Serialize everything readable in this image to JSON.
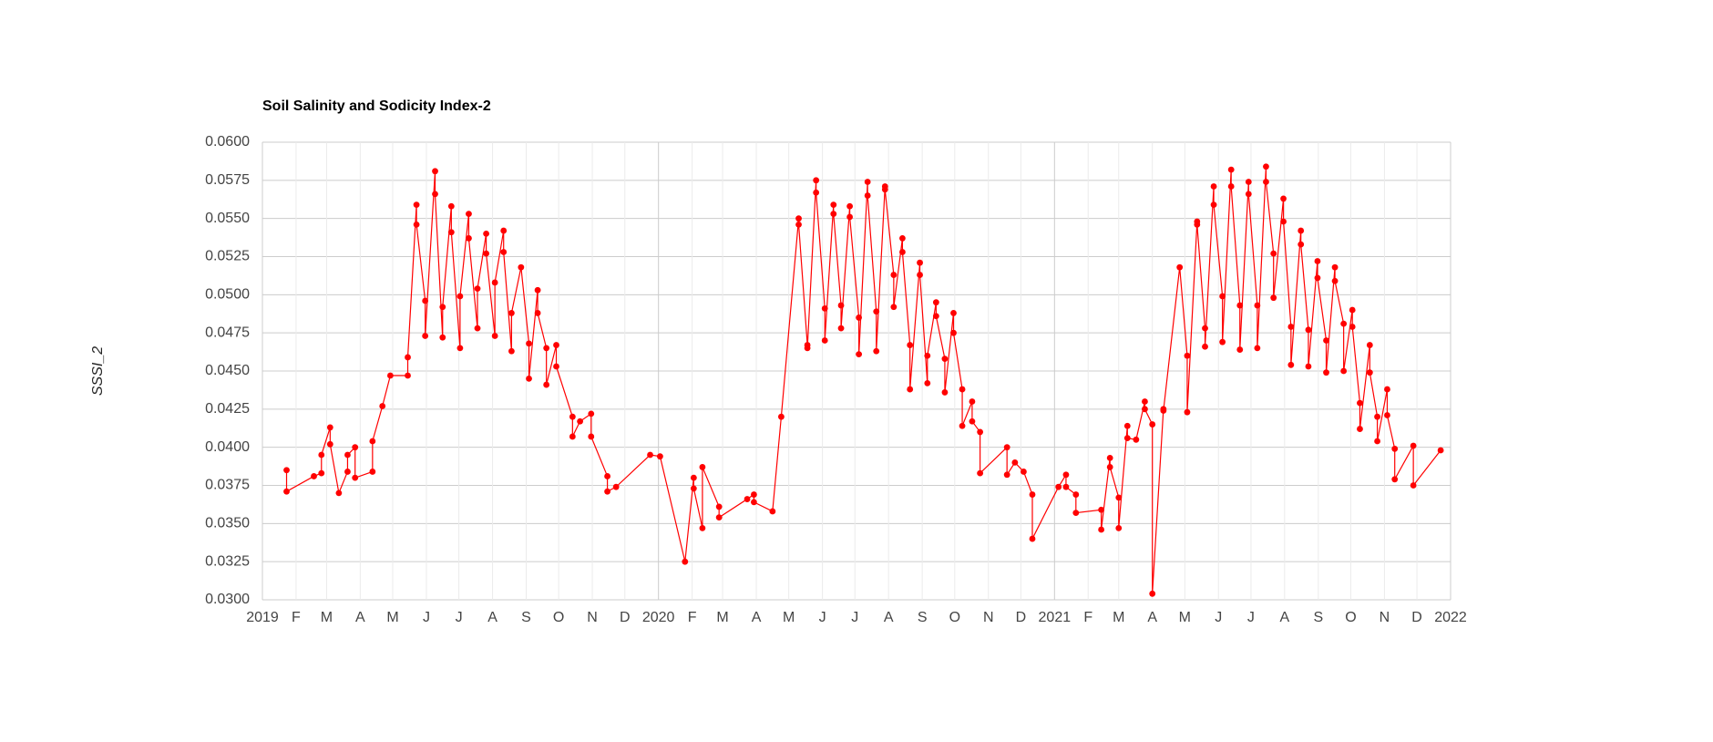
{
  "chart_data": {
    "type": "line",
    "title": "Soil Salinity and Sodicity Index-2",
    "y_label": "SSSI_2",
    "color": "#ff0000",
    "grid": true,
    "x": [
      2019.061,
      2019.061,
      2019.13,
      2019.149,
      2019.149,
      2019.171,
      2019.171,
      2019.193,
      2019.215,
      2019.215,
      2019.234,
      2019.234,
      2019.278,
      2019.278,
      2019.303,
      2019.323,
      2019.367,
      2019.367,
      2019.389,
      2019.389,
      2019.411,
      2019.411,
      2019.436,
      2019.436,
      2019.455,
      2019.455,
      2019.477,
      2019.477,
      2019.499,
      2019.499,
      2019.521,
      2019.521,
      2019.543,
      2019.543,
      2019.565,
      2019.565,
      2019.587,
      2019.587,
      2019.609,
      2019.609,
      2019.629,
      2019.629,
      2019.653,
      2019.673,
      2019.673,
      2019.695,
      2019.695,
      2019.717,
      2019.717,
      2019.742,
      2019.742,
      2019.783,
      2019.783,
      2019.802,
      2019.83,
      2019.83,
      2019.871,
      2019.871,
      2019.893,
      2019.979,
      2020.004,
      2020.067,
      2020.089,
      2020.089,
      2020.111,
      2020.111,
      2020.153,
      2020.153,
      2020.224,
      2020.241,
      2020.241,
      2020.288,
      2020.31,
      2020.354,
      2020.354,
      2020.376,
      2020.376,
      2020.398,
      2020.398,
      2020.42,
      2020.42,
      2020.442,
      2020.442,
      2020.461,
      2020.461,
      2020.483,
      2020.483,
      2020.506,
      2020.506,
      2020.528,
      2020.528,
      2020.55,
      2020.55,
      2020.572,
      2020.572,
      2020.594,
      2020.594,
      2020.616,
      2020.616,
      2020.635,
      2020.635,
      2020.66,
      2020.66,
      2020.679,
      2020.679,
      2020.701,
      2020.701,
      2020.723,
      2020.723,
      2020.745,
      2020.745,
      2020.767,
      2020.767,
      2020.792,
      2020.792,
      2020.812,
      2020.812,
      2020.88,
      2020.88,
      2020.9,
      2020.922,
      2020.944,
      2020.944,
      2021.01,
      2021.029,
      2021.029,
      2021.054,
      2021.054,
      2021.118,
      2021.118,
      2021.14,
      2021.14,
      2021.162,
      2021.162,
      2021.184,
      2021.184,
      2021.206,
      2021.228,
      2021.228,
      2021.247,
      2021.247,
      2021.275,
      2021.275,
      2021.316,
      2021.335,
      2021.335,
      2021.36,
      2021.36,
      2021.38,
      2021.38,
      2021.402,
      2021.402,
      2021.424,
      2021.424,
      2021.446,
      2021.446,
      2021.468,
      2021.468,
      2021.49,
      2021.49,
      2021.512,
      2021.512,
      2021.534,
      2021.534,
      2021.553,
      2021.553,
      2021.578,
      2021.578,
      2021.597,
      2021.597,
      2021.622,
      2021.622,
      2021.641,
      2021.641,
      2021.664,
      2021.664,
      2021.686,
      2021.686,
      2021.708,
      2021.708,
      2021.73,
      2021.73,
      2021.752,
      2021.752,
      2021.771,
      2021.771,
      2021.796,
      2021.796,
      2021.815,
      2021.815,
      2021.84,
      2021.84,
      2021.859,
      2021.859,
      2021.906,
      2021.906,
      2021.975
    ],
    "values": [
      0.0385,
      0.0371,
      0.0381,
      0.0383,
      0.0395,
      0.0413,
      0.0402,
      0.037,
      0.0384,
      0.0395,
      0.04,
      0.038,
      0.0384,
      0.0404,
      0.0427,
      0.0447,
      0.0447,
      0.0459,
      0.0559,
      0.0546,
      0.0496,
      0.0473,
      0.0581,
      0.0566,
      0.0472,
      0.0492,
      0.0558,
      0.0541,
      0.0465,
      0.0499,
      0.0553,
      0.0537,
      0.0478,
      0.0504,
      0.054,
      0.0527,
      0.0473,
      0.0508,
      0.0542,
      0.0528,
      0.0463,
      0.0488,
      0.0518,
      0.0468,
      0.0445,
      0.0503,
      0.0488,
      0.0465,
      0.0441,
      0.0467,
      0.0453,
      0.042,
      0.0407,
      0.0417,
      0.0422,
      0.0407,
      0.0381,
      0.0371,
      0.0374,
      0.0395,
      0.0394,
      0.0325,
      0.038,
      0.0373,
      0.0347,
      0.0387,
      0.0361,
      0.0354,
      0.0366,
      0.0369,
      0.0364,
      0.0358,
      0.042,
      0.055,
      0.0546,
      0.0467,
      0.0465,
      0.0575,
      0.0567,
      0.0491,
      0.047,
      0.0559,
      0.0553,
      0.0493,
      0.0478,
      0.0558,
      0.0551,
      0.0485,
      0.0461,
      0.0574,
      0.0565,
      0.0489,
      0.0463,
      0.0571,
      0.0569,
      0.0513,
      0.0492,
      0.0537,
      0.0528,
      0.0467,
      0.0438,
      0.0521,
      0.0513,
      0.0442,
      0.046,
      0.0495,
      0.0486,
      0.0458,
      0.0436,
      0.0488,
      0.0475,
      0.0438,
      0.0414,
      0.043,
      0.0417,
      0.041,
      0.0383,
      0.04,
      0.0382,
      0.039,
      0.0384,
      0.0369,
      0.034,
      0.0374,
      0.0382,
      0.0374,
      0.0369,
      0.0357,
      0.0359,
      0.0346,
      0.0393,
      0.0387,
      0.0367,
      0.0347,
      0.0414,
      0.0406,
      0.0405,
      0.043,
      0.0425,
      0.0415,
      0.0304,
      0.0425,
      0.0424,
      0.0518,
      0.046,
      0.0423,
      0.0548,
      0.0546,
      0.0478,
      0.0466,
      0.0571,
      0.0559,
      0.0499,
      0.0469,
      0.0582,
      0.0571,
      0.0493,
      0.0464,
      0.0574,
      0.0566,
      0.0493,
      0.0465,
      0.0584,
      0.0574,
      0.0527,
      0.0498,
      0.0563,
      0.0548,
      0.0479,
      0.0454,
      0.0542,
      0.0533,
      0.0477,
      0.0453,
      0.0522,
      0.0511,
      0.047,
      0.0449,
      0.0518,
      0.0509,
      0.0481,
      0.045,
      0.049,
      0.0479,
      0.0429,
      0.0412,
      0.0467,
      0.0449,
      0.042,
      0.0404,
      0.0438,
      0.0421,
      0.0399,
      0.0379,
      0.0401,
      0.0375,
      0.0398
    ],
    "xlim": [
      2019,
      2022
    ],
    "xticks": [
      2019,
      {
        "value": 2019.085,
        "label": "F"
      },
      {
        "value": 2019.162,
        "label": "M"
      },
      {
        "value": 2019.247,
        "label": "A"
      },
      {
        "value": 2019.329,
        "label": "M"
      },
      {
        "value": 2019.414,
        "label": "J"
      },
      {
        "value": 2019.496,
        "label": "J"
      },
      {
        "value": 2019.581,
        "label": "A"
      },
      {
        "value": 2019.666,
        "label": "S"
      },
      {
        "value": 2019.748,
        "label": "O"
      },
      {
        "value": 2019.833,
        "label": "N"
      },
      {
        "value": 2019.915,
        "label": "D"
      },
      2020,
      {
        "value": 2020.085,
        "label": "F"
      },
      {
        "value": 2020.162,
        "label": "M"
      },
      {
        "value": 2020.247,
        "label": "A"
      },
      {
        "value": 2020.329,
        "label": "M"
      },
      {
        "value": 2020.414,
        "label": "J"
      },
      {
        "value": 2020.496,
        "label": "J"
      },
      {
        "value": 2020.581,
        "label": "A"
      },
      {
        "value": 2020.666,
        "label": "S"
      },
      {
        "value": 2020.748,
        "label": "O"
      },
      {
        "value": 2020.833,
        "label": "N"
      },
      {
        "value": 2020.915,
        "label": "D"
      },
      2021,
      {
        "value": 2021.085,
        "label": "F"
      },
      {
        "value": 2021.162,
        "label": "M"
      },
      {
        "value": 2021.247,
        "label": "A"
      },
      {
        "value": 2021.329,
        "label": "M"
      },
      {
        "value": 2021.414,
        "label": "J"
      },
      {
        "value": 2021.496,
        "label": "J"
      },
      {
        "value": 2021.581,
        "label": "A"
      },
      {
        "value": 2021.666,
        "label": "S"
      },
      {
        "value": 2021.748,
        "label": "O"
      },
      {
        "value": 2021.833,
        "label": "N"
      },
      {
        "value": 2021.915,
        "label": "D"
      },
      2022
    ],
    "ylim": [
      0.03,
      0.06
    ],
    "yticks": [
      {
        "value": 0.03,
        "label": "0.0300"
      },
      {
        "value": 0.0325,
        "label": "0.0325"
      },
      {
        "value": 0.035,
        "label": "0.0350"
      },
      {
        "value": 0.0375,
        "label": "0.0375"
      },
      {
        "value": 0.04,
        "label": "0.0400"
      },
      {
        "value": 0.0425,
        "label": "0.0425"
      },
      {
        "value": 0.045,
        "label": "0.0450"
      },
      {
        "value": 0.0475,
        "label": "0.0475"
      },
      {
        "value": 0.05,
        "label": "0.0500"
      },
      {
        "value": 0.0525,
        "label": "0.0525"
      },
      {
        "value": 0.055,
        "label": "0.0550"
      },
      {
        "value": 0.0575,
        "label": "0.0575"
      },
      {
        "value": 0.06,
        "label": "0.0600"
      }
    ]
  }
}
